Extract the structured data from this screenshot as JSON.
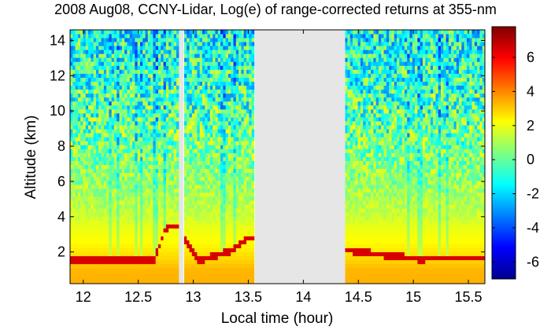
{
  "chart_data": {
    "type": "heatmap",
    "title": "2008 Aug08, CCNY-Lidar, Log(e) of range-corrected returns at 355-nm",
    "xlabel": "Local time (hour)",
    "ylabel": "Altitude (km)",
    "xlim": [
      11.88,
      15.65
    ],
    "ylim": [
      0.2,
      14.6
    ],
    "x_ticks": [
      "12",
      "12.5",
      "13",
      "13.5",
      "14",
      "14.5",
      "15",
      "15.5"
    ],
    "y_ticks": [
      "2",
      "4",
      "6",
      "8",
      "10",
      "12",
      "14"
    ],
    "colorbar": {
      "range": [
        -7,
        7.8
      ],
      "ticks": [
        "6",
        "4",
        "2",
        "0",
        "-2",
        "-4",
        "-6"
      ],
      "colormap": "jet"
    },
    "data_gaps_hours": [
      [
        12.87,
        12.91
      ],
      [
        13.56,
        14.38
      ]
    ],
    "profile": {
      "altitude_km": [
        0.2,
        1.0,
        1.5,
        2.0,
        2.5,
        3.0,
        3.5,
        4.0,
        5.0,
        6.0,
        8.0,
        10.0,
        12.0,
        14.6
      ],
      "log_return": [
        3.4,
        3.3,
        2.9,
        2.6,
        2.3,
        2.1,
        1.9,
        1.5,
        1.1,
        0.7,
        0.2,
        -0.3,
        -0.8,
        -1.3
      ]
    },
    "boundary_layer_top_km": [
      {
        "time": 12.33,
        "altitude": 1.5
      },
      {
        "time": 12.65,
        "altitude": 1.6
      },
      {
        "time": 12.75,
        "altitude": 3.4
      },
      {
        "time": 12.85,
        "altitude": 3.5
      },
      {
        "time": 13.05,
        "altitude": 1.5
      },
      {
        "time": 13.35,
        "altitude": 2.1
      },
      {
        "time": 13.5,
        "altitude": 2.8
      },
      {
        "time": 15.05,
        "altitude": 1.6
      },
      {
        "time": 15.32,
        "altitude": 1.7
      },
      {
        "time": 15.5,
        "altitude": 1.7
      }
    ],
    "cloud_columns_hours": [
      12.24,
      12.31,
      12.48,
      12.52,
      12.64,
      12.67,
      12.75,
      13.27,
      13.37,
      14.95,
      15.05,
      15.08,
      15.23,
      15.31
    ]
  }
}
